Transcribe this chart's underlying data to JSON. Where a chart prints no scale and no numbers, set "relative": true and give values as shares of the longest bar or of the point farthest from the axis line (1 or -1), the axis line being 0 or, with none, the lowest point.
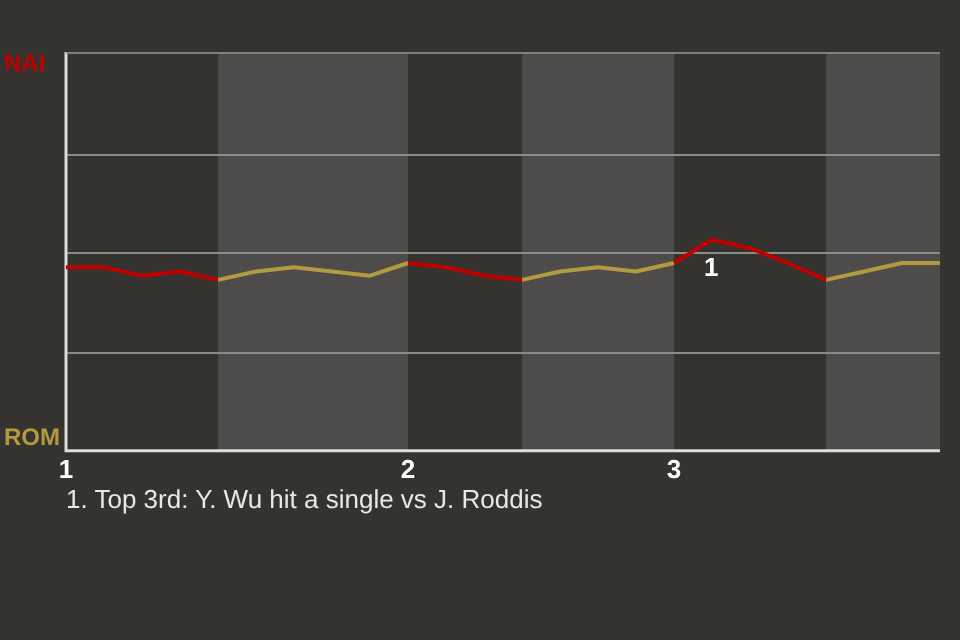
{
  "chart_data": {
    "type": "line",
    "relative": true,
    "categories": [
      "1",
      null,
      null,
      null,
      null,
      null,
      null,
      null,
      null,
      "2",
      null,
      null,
      null,
      null,
      null,
      null,
      "3",
      null,
      null,
      null,
      null,
      null,
      null,
      null
    ],
    "series": [
      {
        "name": "NAI",
        "color": "#c00000",
        "values": [
          0.87,
          0.87,
          0.83,
          0.85,
          0.81,
          null,
          null,
          null,
          null,
          0.89,
          0.87,
          0.83,
          0.81,
          null,
          null,
          null,
          0.89,
          1,
          0.96,
          0.89,
          0.81,
          null,
          null,
          null
        ]
      },
      {
        "name": "ROM",
        "color": "#b39a3e",
        "values": [
          null,
          null,
          null,
          null,
          0.81,
          0.85,
          0.87,
          0.85,
          0.83,
          0.89,
          null,
          null,
          0.81,
          0.85,
          0.87,
          0.85,
          0.89,
          null,
          null,
          null,
          0.81,
          0.85,
          0.89,
          0.89
        ]
      }
    ],
    "annotations": [
      {
        "text": "1",
        "y": 1
      },
      "1. Top 3rd: Y. Wu hit a single vs J. Roddis"
    ],
    "ref_lines": [
      {
        "axis": "y",
        "value": 0.47,
        "color": "#8a8a88"
      },
      {
        "axis": "y",
        "value": 0.94,
        "color": "#8a8a88"
      },
      {
        "axis": "y",
        "value": 1.41,
        "color": "#8a8a88"
      }
    ],
    "legend": false,
    "marker": "none",
    "line_style": "solid"
  }
}
